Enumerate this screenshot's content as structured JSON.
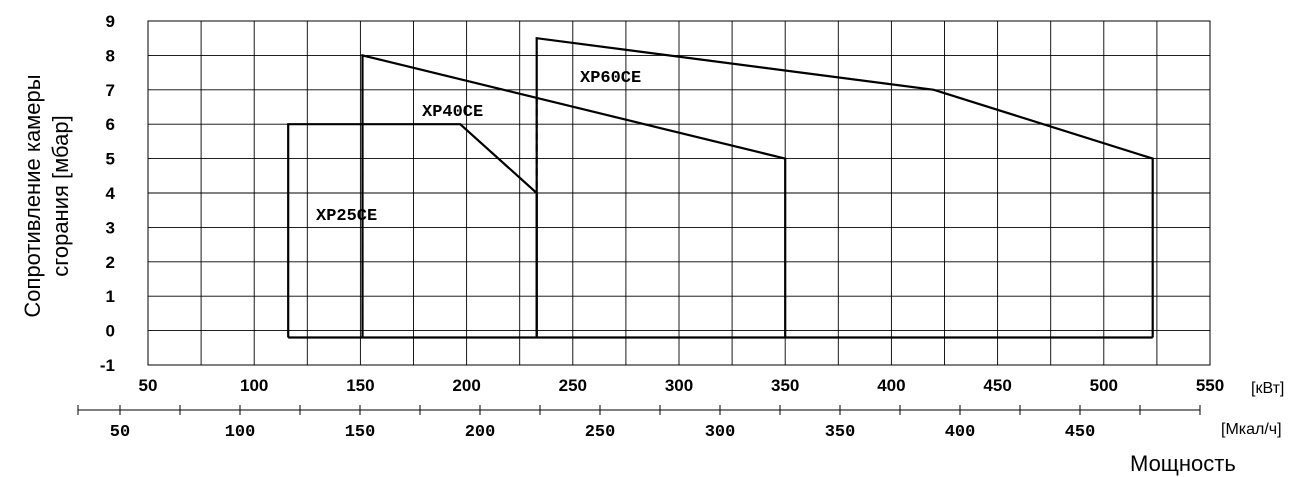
{
  "chart_data": {
    "type": "line",
    "ylabel_lines": [
      "Сопротивление камеры",
      "сгорания [мбар]"
    ],
    "xlabel": "Мощность",
    "x_unit": "[кВт]",
    "x2_unit": "[Мкал/ч]",
    "ylim": [
      -1,
      9
    ],
    "yticks": [
      "-1",
      "0",
      "1",
      "2",
      "3",
      "4",
      "5",
      "6",
      "7",
      "8",
      "9"
    ],
    "xlim": [
      50,
      550
    ],
    "xticks": [
      "50",
      "100",
      "150",
      "200",
      "250",
      "300",
      "350",
      "400",
      "450",
      "500",
      "550"
    ],
    "x2ticks": [
      "50",
      "100",
      "150",
      "200",
      "250",
      "300",
      "350",
      "400",
      "450"
    ],
    "grid": true,
    "series": [
      {
        "name": "XP25CE",
        "x": [
          116,
          116,
          197,
          233,
          233
        ],
        "y": [
          -0.2,
          6,
          6,
          4,
          -0.2
        ]
      },
      {
        "name": "XP40CE",
        "x": [
          151,
          151,
          350,
          350
        ],
        "y": [
          -0.2,
          8,
          5,
          -0.2
        ]
      },
      {
        "name": "XP60CE",
        "x": [
          233,
          233,
          420,
          523,
          523
        ],
        "y": [
          -0.2,
          8.5,
          7,
          5,
          -0.2
        ]
      }
    ],
    "baseline": {
      "x": [
        116,
        523
      ],
      "y": [
        -0.2,
        -0.2
      ]
    }
  }
}
